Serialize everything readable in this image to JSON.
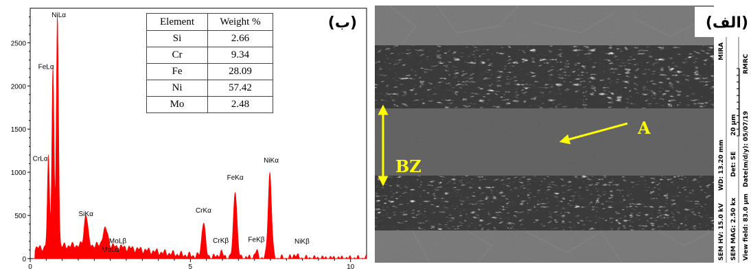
{
  "chart_data": {
    "type": "area",
    "panel_label": "(ب)",
    "x_range": [
      0,
      10.5
    ],
    "y_range": [
      0,
      2900
    ],
    "x_ticks": [
      0,
      5,
      10
    ],
    "y_ticks": [
      0,
      500,
      1000,
      1500,
      2000,
      2500
    ],
    "color": "#ff0000",
    "peaks": [
      {
        "label": "CrLα",
        "x": 0.57,
        "y": 1100
      },
      {
        "label": "FeLα",
        "x": 0.71,
        "y": 2150
      },
      {
        "label": "NiLα",
        "x": 0.85,
        "y": 2750
      },
      {
        "label": "SiKα",
        "x": 1.74,
        "y": 430
      },
      {
        "label": "MoLβ",
        "x": 2.39,
        "y": 210
      },
      {
        "label": "MoLα",
        "x": 2.29,
        "y": 190
      },
      {
        "label": "CrKα",
        "x": 5.41,
        "y": 470
      },
      {
        "label": "CrKβ",
        "x": 5.95,
        "y": 120
      },
      {
        "label": "FeKα",
        "x": 6.4,
        "y": 850
      },
      {
        "label": "FeKβ",
        "x": 7.06,
        "y": 130
      },
      {
        "label": "NiKα",
        "x": 7.48,
        "y": 1050
      },
      {
        "label": "NiKβ",
        "x": 8.27,
        "y": 110
      }
    ],
    "table": {
      "headers": [
        "Element",
        "Weight %"
      ],
      "rows": [
        [
          "Si",
          "2.66"
        ],
        [
          "Cr",
          "9.34"
        ],
        [
          "Fe",
          "28.09"
        ],
        [
          "Ni",
          "57.42"
        ],
        [
          "Mo",
          "2.48"
        ]
      ]
    }
  },
  "sem": {
    "panel_label": "(الف)",
    "annotations": {
      "point": "A",
      "zone": "BZ"
    },
    "info_bar": {
      "col1": [
        "SEM HV: 15.0 kV",
        "WD: 13.20 mm",
        "MIRA"
      ],
      "col2": [
        "SEM MAG: 2.50 kx",
        "Det: SE",
        "20 μm"
      ],
      "col3": [
        "View field: 83.0 μm",
        "Date(m/d/y): 05/07/19",
        "RMRC"
      ]
    },
    "colors": {
      "annotation": "#ffff00",
      "background": "#707070"
    }
  }
}
